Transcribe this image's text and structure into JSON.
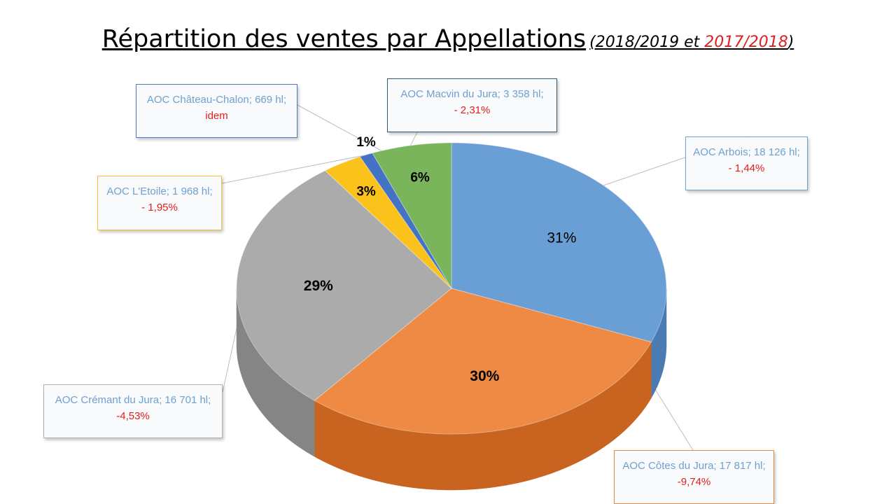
{
  "title": {
    "main": "Répartition des ventes par Appellations",
    "sub_open": "(2018/2019 et ",
    "sub_red": "2017/2018",
    "sub_close": ")"
  },
  "chart_data": {
    "type": "pie",
    "title": "Répartition des ventes par Appellations (2018/2019 et 2017/2018)",
    "slices": [
      {
        "label": "AOC Arbois",
        "volume": "18 126 hl",
        "percent": 31,
        "change": "- 1,44%",
        "color": "#6a9fd6",
        "side": "#4a7cb3",
        "border": "#6fa0cf"
      },
      {
        "label": "AOC Côtes du Jura",
        "volume": "17 817 hl",
        "percent": 30,
        "change": "-9,74%",
        "color": "#ee8a44",
        "side": "#c8641f",
        "border": "#e98a3a"
      },
      {
        "label": "AOC Crémant du Jura",
        "volume": "16 701 hl",
        "percent": 29,
        "change": "-4,53%",
        "color": "#ababab",
        "side": "#858585",
        "border": "#b0b0b0"
      },
      {
        "label": "AOC L'Etoile",
        "volume": "1 968 hl",
        "percent": 3,
        "change": "- 1,95%",
        "color": "#fbc21c",
        "side": "#d49d05",
        "border": "#f5c12e"
      },
      {
        "label": "AOC Château-Chalon",
        "volume": "669 hl",
        "percent": 1,
        "change": "idem",
        "color": "#4472c4",
        "side": "#2f5496",
        "border": "#4a7bc8"
      },
      {
        "label": "AOC Macvin du Jura",
        "volume": "3 358 hl",
        "percent": 6,
        "change": "- 2,31%",
        "color": "#7bb55b",
        "side": "#5a8c3f",
        "border": "#2f5a74"
      }
    ]
  }
}
